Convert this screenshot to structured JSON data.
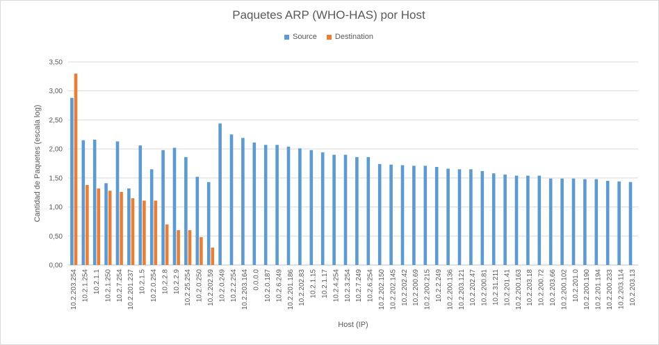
{
  "chart_data": {
    "type": "bar",
    "title": "Paquetes ARP (WHO-HAS) por Host",
    "xlabel": "Host (IP)",
    "ylabel": "Cantidad de Paquetes (escala log)",
    "ylim": [
      0,
      3.5
    ],
    "yticks": [
      "0,00",
      "0,50",
      "1,00",
      "1,50",
      "2,00",
      "2,50",
      "3,00",
      "3,50"
    ],
    "grid": true,
    "legend_position": "top",
    "categories": [
      "10.2.203.254",
      "10.2.1.254",
      "10.2.1.1",
      "10.2.1.250",
      "10.2.7.254",
      "10.2.201.237",
      "10.2.1.5",
      "10.2.0.254",
      "10.2.2.8",
      "10.2.2.9",
      "10.2.25.254",
      "10.2.0.250",
      "10.2.202.59",
      "10.2.0.249",
      "10.2.2.254",
      "10.2.203.164",
      "0.0.0.0",
      "10.2.0.187",
      "10.2.6.249",
      "10.2.201.186",
      "10.2.202.83",
      "10.2.1.15",
      "10.2.1.17",
      "10.2.4.254",
      "10.2.3.254",
      "10.2.7.249",
      "10.2.6.254",
      "10.2.202.150",
      "10.2.202.145",
      "10.2.202.42",
      "10.2.200.69",
      "10.2.200.215",
      "10.2.2.249",
      "10.2.200.136",
      "10.2.203.121",
      "10.2.202.47",
      "10.2.200.81",
      "10.2.31.211",
      "10.2.201.41",
      "10.2.200.163",
      "10.2.203.18",
      "10.2.200.72",
      "10.2.203.66",
      "10.2.200.102",
      "10.2.201.0",
      "10.2.200.190",
      "10.2.201.194",
      "10.2.200.233",
      "10.2.203.114",
      "10.2.203.13"
    ],
    "series": [
      {
        "name": "Source",
        "color": "#5b9bd5",
        "values": [
          2.88,
          2.15,
          2.16,
          1.41,
          2.13,
          1.32,
          2.06,
          1.65,
          1.98,
          2.02,
          1.86,
          1.52,
          1.43,
          2.44,
          2.25,
          2.19,
          2.11,
          2.07,
          2.07,
          2.04,
          2.01,
          1.98,
          1.94,
          1.9,
          1.9,
          1.86,
          1.86,
          1.74,
          1.73,
          1.72,
          1.71,
          1.71,
          1.69,
          1.66,
          1.65,
          1.65,
          1.62,
          1.58,
          1.56,
          1.54,
          1.54,
          1.54,
          1.49,
          1.49,
          1.49,
          1.48,
          1.48,
          1.45,
          1.44,
          1.43
        ]
      },
      {
        "name": "Destination",
        "color": "#ed7d31",
        "values": [
          3.3,
          1.38,
          1.32,
          1.28,
          1.26,
          1.15,
          1.11,
          1.11,
          0.7,
          0.6,
          0.6,
          0.48,
          0.3,
          null,
          null,
          null,
          null,
          null,
          null,
          null,
          null,
          null,
          null,
          null,
          null,
          null,
          null,
          null,
          null,
          null,
          null,
          null,
          null,
          null,
          null,
          null,
          null,
          null,
          null,
          null,
          null,
          null,
          null,
          null,
          null,
          null,
          null,
          null,
          null,
          null
        ]
      }
    ]
  }
}
